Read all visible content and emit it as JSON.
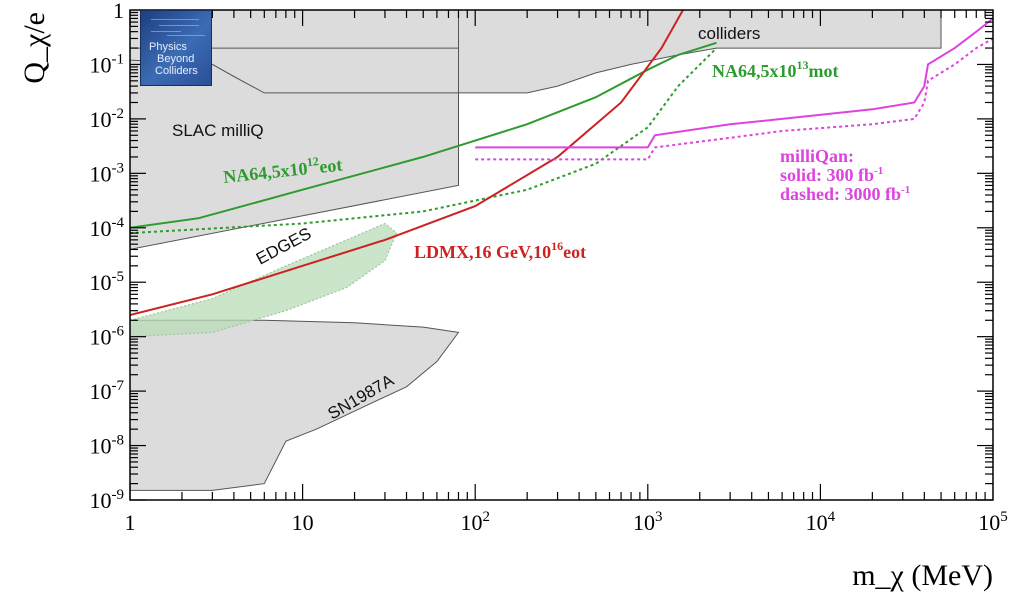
{
  "chart_data": {
    "type": "line",
    "title": "",
    "xlabel": "m_χ (MeV)",
    "ylabel": "Q_χ/e",
    "xscale": "log",
    "yscale": "log",
    "xlim": [
      1,
      100000
    ],
    "ylim": [
      1e-09,
      1
    ],
    "x_ticks": [
      {
        "value": 1,
        "base": "1",
        "exp": ""
      },
      {
        "value": 10,
        "base": "10",
        "exp": ""
      },
      {
        "value": 100,
        "base": "10",
        "exp": "2"
      },
      {
        "value": 1000,
        "base": "10",
        "exp": "3"
      },
      {
        "value": 10000,
        "base": "10",
        "exp": "4"
      },
      {
        "value": 100000,
        "base": "10",
        "exp": "5"
      }
    ],
    "y_ticks": [
      {
        "value": 1e-09,
        "base": "10",
        "exp": "-9"
      },
      {
        "value": 1e-08,
        "base": "10",
        "exp": "-8"
      },
      {
        "value": 1e-07,
        "base": "10",
        "exp": "-7"
      },
      {
        "value": 1e-06,
        "base": "10",
        "exp": "-6"
      },
      {
        "value": 1e-05,
        "base": "10",
        "exp": "-5"
      },
      {
        "value": 0.0001,
        "base": "10",
        "exp": "-4"
      },
      {
        "value": 0.001,
        "base": "10",
        "exp": "-3"
      },
      {
        "value": 0.01,
        "base": "10",
        "exp": "-2"
      },
      {
        "value": 0.1,
        "base": "10",
        "exp": "-1"
      },
      {
        "value": 1,
        "base": "1",
        "exp": ""
      }
    ],
    "regions": [
      {
        "name": "slac-milliq",
        "label": "SLAC milliQ",
        "color": "#dcdcdc",
        "points": [
          [
            1,
            1
          ],
          [
            80,
            1
          ],
          [
            80,
            0.0006
          ],
          [
            1,
            4e-05
          ]
        ]
      },
      {
        "name": "colliders",
        "label": "colliders",
        "color": "#dcdcdc",
        "points": [
          [
            80,
            1
          ],
          [
            50000,
            1
          ],
          [
            50000,
            0.2
          ],
          [
            2500,
            0.2
          ],
          [
            1500,
            0.15
          ],
          [
            800,
            0.1
          ],
          [
            500,
            0.07
          ],
          [
            300,
            0.04
          ],
          [
            200,
            0.03
          ],
          [
            80,
            0.03
          ]
        ]
      },
      {
        "name": "collider-step",
        "label": "",
        "color": "#dcdcdc",
        "points": [
          [
            1,
            0.2
          ],
          [
            80,
            0.2
          ],
          [
            80,
            0.03
          ],
          [
            6,
            0.03
          ],
          [
            4,
            0.06
          ],
          [
            3,
            0.1
          ],
          [
            1,
            0.12
          ]
        ]
      },
      {
        "name": "sn1987a",
        "label": "SN1987A",
        "color": "#dcdcdc",
        "points": [
          [
            1,
            2e-06
          ],
          [
            6,
            2e-06
          ],
          [
            20,
            1.8e-06
          ],
          [
            50,
            1.5e-06
          ],
          [
            80,
            1.2e-06
          ],
          [
            60,
            3.5e-07
          ],
          [
            40,
            1.2e-07
          ],
          [
            25,
            6e-08
          ],
          [
            12,
            2e-08
          ],
          [
            8,
            1.2e-08
          ],
          [
            6,
            2e-09
          ],
          [
            3,
            1.5e-09
          ],
          [
            1,
            1.5e-09
          ]
        ]
      },
      {
        "name": "edges",
        "label": "EDGES",
        "color": "#b8dcb8",
        "points": [
          [
            1,
            2e-06
          ],
          [
            3,
            5e-06
          ],
          [
            8,
            2e-05
          ],
          [
            18,
            6e-05
          ],
          [
            30,
            0.00012
          ],
          [
            35,
            8e-05
          ],
          [
            30,
            2.5e-05
          ],
          [
            18,
            8e-06
          ],
          [
            8,
            3e-06
          ],
          [
            3,
            1.2e-06
          ],
          [
            1,
            1e-06
          ]
        ]
      }
    ],
    "series": [
      {
        "name": "NA64,5x10^12 eot",
        "color": "#2e9b2e",
        "dash": "solid",
        "x": [
          1,
          2.5,
          10,
          50,
          200,
          500,
          1000,
          1500,
          2500
        ],
        "y": [
          0.0001,
          0.00015,
          0.0005,
          0.002,
          0.008,
          0.025,
          0.08,
          0.15,
          0.25
        ]
      },
      {
        "name": "NA64,5x10^13 mot",
        "color": "#2e9b2e",
        "dash": "dotted",
        "x": [
          1,
          10,
          50,
          200,
          500,
          1000,
          1500,
          2500
        ],
        "y": [
          8e-05,
          0.00012,
          0.0002,
          0.0005,
          0.0015,
          0.007,
          0.04,
          0.2
        ]
      },
      {
        "name": "LDMX,16 GeV,10^16 eot",
        "color": "#cc2222",
        "dash": "solid",
        "x": [
          1,
          3,
          10,
          30,
          100,
          300,
          700,
          1200,
          1600
        ],
        "y": [
          2.5e-06,
          6e-06,
          2e-05,
          6e-05,
          0.00025,
          0.002,
          0.02,
          0.2,
          1
        ]
      },
      {
        "name": "milliQan 300 fb-1",
        "color": "#dd44dd",
        "dash": "solid",
        "x": [
          100,
          1000,
          1100,
          3000,
          6000,
          20000,
          35000,
          40000,
          42000,
          60000,
          80000,
          100000
        ],
        "y": [
          0.003,
          0.003,
          0.005,
          0.008,
          0.01,
          0.015,
          0.02,
          0.04,
          0.1,
          0.2,
          0.4,
          0.7
        ]
      },
      {
        "name": "milliQan 3000 fb-1",
        "color": "#dd44dd",
        "dash": "dotted",
        "x": [
          100,
          1000,
          1100,
          3000,
          6000,
          20000,
          35000,
          40000,
          42000,
          60000,
          80000,
          100000
        ],
        "y": [
          0.0018,
          0.0018,
          0.003,
          0.0045,
          0.006,
          0.008,
          0.01,
          0.02,
          0.05,
          0.1,
          0.2,
          0.3
        ]
      }
    ],
    "annotations": [
      {
        "name": "label-slac",
        "text": "SLAC milliQ",
        "color": "#111111"
      },
      {
        "name": "label-colliders",
        "text": "colliders",
        "color": "#111111"
      },
      {
        "name": "label-na64-mot",
        "text": "NA64,5x10",
        "sup": "13",
        "tail": "mot",
        "color": "#2e9b2e"
      },
      {
        "name": "label-na64-eot",
        "text": "NA64,5x10",
        "sup": "12",
        "tail": "eot",
        "color": "#2e9b2e"
      },
      {
        "name": "label-edges",
        "text": "EDGES",
        "color": "#7aaa7a"
      },
      {
        "name": "label-ldmx",
        "text": "LDMX,16 GeV,10",
        "sup": "16",
        "tail": "eot",
        "color": "#cc2222"
      },
      {
        "name": "label-sn1987a",
        "text": "SN1987A",
        "color": "#111111"
      }
    ],
    "milliqan_legend": {
      "color": "#dd44dd",
      "line1": "milliQan:",
      "line2": "solid: 300 fb",
      "line2_sup": "-1",
      "line3": "dashed: 3000 fb",
      "line3_sup": "-1"
    }
  },
  "logo": {
    "line1": "Physics",
    "line2": "Beyond",
    "line3": "Colliders"
  }
}
